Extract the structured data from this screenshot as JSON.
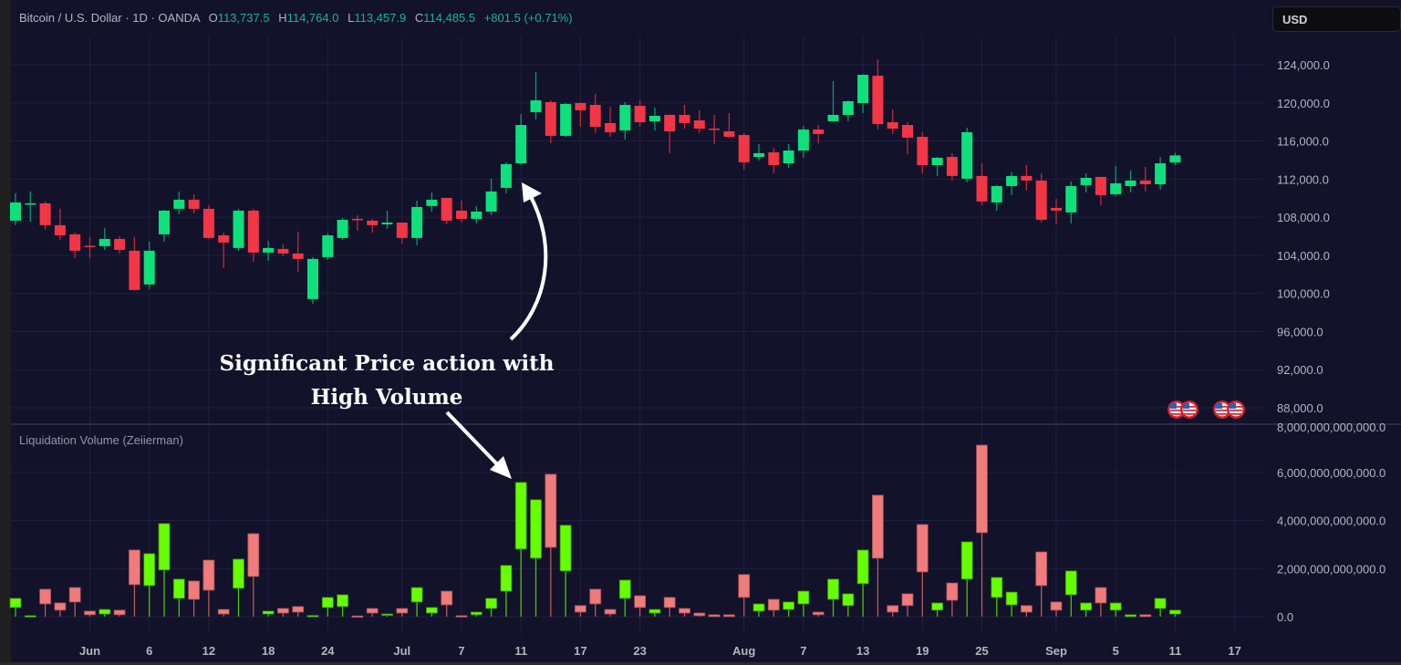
{
  "legend": {
    "symbol": "Bitcoin / U.S. Dollar · 1D · OANDA",
    "open_label": "O",
    "open": "113,737.5",
    "high_label": "H",
    "high": "114,764.0",
    "low_label": "L",
    "low": "113,457.9",
    "close_label": "C",
    "close": "114,485.5",
    "change": "+801.5 (+0.71%)"
  },
  "currency_button": "USD",
  "annotation": {
    "line1": "Significant Price action with",
    "line2": "High Volume"
  },
  "colors": {
    "background": "#12122b",
    "candle_up": "#0ee07b",
    "candle_down": "#f23645",
    "volume_up": "#66ff00",
    "volume_down": "#f07b7b",
    "grid": "#1f2040"
  },
  "icons": [
    "us-flag-event-icon",
    "us-flag-event-icon",
    "us-flag-event-icon",
    "us-flag-event-icon"
  ],
  "chart_data": [
    {
      "type": "candlestick",
      "title": "",
      "ylim": [
        88000,
        124000
      ],
      "y_ticks": [
        "124,000.0",
        "120,000.0",
        "116,000.0",
        "112,000.0",
        "108,000.0",
        "104,000.0",
        "100,000.0",
        "96,000.0",
        "92,000.0",
        "88,000.0"
      ],
      "y_tick_values": [
        124000,
        120000,
        116000,
        112000,
        108000,
        104000,
        100000,
        96000,
        92000,
        88000
      ],
      "x_ticks": [
        {
          "label": "Jun",
          "bar": 5
        },
        {
          "label": "6",
          "bar": 9
        },
        {
          "label": "12",
          "bar": 13
        },
        {
          "label": "18",
          "bar": 17
        },
        {
          "label": "24",
          "bar": 21
        },
        {
          "label": "Jul",
          "bar": 26
        },
        {
          "label": "7",
          "bar": 30
        },
        {
          "label": "11",
          "bar": 34
        },
        {
          "label": "17",
          "bar": 38
        },
        {
          "label": "23",
          "bar": 42
        },
        {
          "label": "Aug",
          "bar": 49
        },
        {
          "label": "7",
          "bar": 53
        },
        {
          "label": "13",
          "bar": 57
        },
        {
          "label": "19",
          "bar": 61
        },
        {
          "label": "25",
          "bar": 65
        },
        {
          "label": "Sep",
          "bar": 70
        },
        {
          "label": "5",
          "bar": 74
        },
        {
          "label": "11",
          "bar": 78
        },
        {
          "label": "17",
          "bar": 82
        }
      ],
      "grid": true,
      "ohlc": [
        [
          107640,
          110510,
          107160,
          109550
        ],
        [
          109400,
          110700,
          107540,
          109460
        ],
        [
          109450,
          109650,
          106680,
          107160
        ],
        [
          107160,
          108880,
          105630,
          106100
        ],
        [
          106200,
          106390,
          103710,
          104480
        ],
        [
          105000,
          105910,
          103710,
          104960
        ],
        [
          104960,
          106870,
          104570,
          105720
        ],
        [
          105720,
          106010,
          104190,
          104570
        ],
        [
          104480,
          105910,
          100300,
          100360
        ],
        [
          100940,
          105440,
          100460,
          104480
        ],
        [
          106200,
          108780,
          105440,
          108690
        ],
        [
          108880,
          110700,
          108310,
          109840
        ],
        [
          109840,
          110410,
          108400,
          108880
        ],
        [
          108880,
          109260,
          105700,
          105820
        ],
        [
          106100,
          106390,
          102660,
          105340
        ],
        [
          104770,
          108880,
          104480,
          108690
        ],
        [
          108690,
          108880,
          103330,
          104290
        ],
        [
          104290,
          105530,
          103430,
          104770
        ],
        [
          104670,
          105150,
          103900,
          104190
        ],
        [
          104190,
          106490,
          102280,
          103620
        ],
        [
          99410,
          103810,
          98930,
          103620
        ],
        [
          103810,
          106300,
          103520,
          106100
        ],
        [
          105820,
          107920,
          105630,
          107730
        ],
        [
          107830,
          108210,
          106580,
          107730
        ],
        [
          107640,
          107830,
          106390,
          107160
        ],
        [
          107250,
          108690,
          106770,
          107440
        ],
        [
          107440,
          107440,
          105240,
          105820
        ],
        [
          105820,
          109740,
          105050,
          109070
        ],
        [
          109170,
          110600,
          108590,
          109840
        ],
        [
          110030,
          110030,
          107250,
          107640
        ],
        [
          108690,
          109740,
          107440,
          107830
        ],
        [
          107830,
          109170,
          107350,
          108590
        ],
        [
          108590,
          112040,
          108210,
          110700
        ],
        [
          111080,
          113760,
          110510,
          113570
        ],
        [
          113660,
          118830,
          113500,
          117680
        ],
        [
          119020,
          123230,
          118260,
          120270
        ],
        [
          120080,
          120270,
          115770,
          116540
        ],
        [
          116540,
          119980,
          116400,
          119890
        ],
        [
          119980,
          120050,
          117490,
          119220
        ],
        [
          119790,
          120940,
          116820,
          117490
        ],
        [
          117880,
          119600,
          116440,
          116920
        ],
        [
          117110,
          120080,
          116150,
          119790
        ],
        [
          119690,
          120270,
          117490,
          117970
        ],
        [
          118070,
          119500,
          117110,
          118640
        ],
        [
          118740,
          118800,
          114720,
          117010
        ],
        [
          118740,
          119790,
          117300,
          117880
        ],
        [
          118160,
          119220,
          116820,
          117300
        ],
        [
          117300,
          118740,
          115670,
          117210
        ],
        [
          117010,
          118930,
          116350,
          116440
        ],
        [
          116630,
          116820,
          112990,
          113760
        ],
        [
          114330,
          115670,
          113950,
          114720
        ],
        [
          114810,
          115290,
          112610,
          113470
        ],
        [
          113660,
          115670,
          113190,
          115000
        ],
        [
          115000,
          117590,
          114240,
          117210
        ],
        [
          117210,
          117680,
          115770,
          116730
        ],
        [
          118070,
          122280,
          118000,
          118740
        ],
        [
          118740,
          120270,
          118070,
          120170
        ],
        [
          119980,
          123000,
          118930,
          122950
        ],
        [
          122850,
          124570,
          117210,
          117780
        ],
        [
          117970,
          119310,
          116730,
          117300
        ],
        [
          117680,
          117970,
          114620,
          116350
        ],
        [
          116440,
          116920,
          112610,
          113470
        ],
        [
          113470,
          114330,
          112330,
          114240
        ],
        [
          114330,
          114720,
          111850,
          112330
        ],
        [
          112040,
          117400,
          111660,
          116920
        ],
        [
          112330,
          113660,
          109260,
          109650
        ],
        [
          109550,
          111370,
          108690,
          111270
        ],
        [
          111270,
          112710,
          110320,
          112330
        ],
        [
          112330,
          113470,
          110790,
          111850
        ],
        [
          111850,
          112610,
          107440,
          107730
        ],
        [
          108980,
          109930,
          107250,
          108690
        ],
        [
          108500,
          111750,
          107350,
          111270
        ],
        [
          111370,
          112610,
          110600,
          112130
        ],
        [
          112230,
          112230,
          109260,
          110320
        ],
        [
          110410,
          113380,
          110220,
          111560
        ],
        [
          111270,
          112900,
          110600,
          111850
        ],
        [
          111850,
          113280,
          110700,
          111460
        ],
        [
          111460,
          114330,
          110890,
          113660
        ],
        [
          113737.5,
          114764.0,
          113457.9,
          114485.5
        ]
      ]
    },
    {
      "type": "candlestick-volume",
      "title": "Liquidation Volume (Zeiierman)",
      "ylim": [
        0,
        8000000000000.0
      ],
      "y_ticks": [
        "8,000,000,000,000.0",
        "6,000,000,000,000.0",
        "4,000,000,000,000.0",
        "2,000,000,000,000.0",
        "0.0"
      ],
      "y_tick_values": [
        8000000000000.0,
        6000000000000.0,
        4000000000000.0,
        2000000000000.0,
        0
      ],
      "bars": [
        {
          "dir": "up",
          "low": 380000000000.0,
          "high": 760000000000.0
        },
        {
          "dir": "up",
          "low": 0,
          "high": 40000000000.0
        },
        {
          "dir": "down",
          "low": 530000000000.0,
          "high": 1140000000000.0
        },
        {
          "dir": "down",
          "low": 270000000000.0,
          "high": 570000000000.0
        },
        {
          "dir": "down",
          "low": 610000000000.0,
          "high": 1210000000000.0
        },
        {
          "dir": "down",
          "low": 80000000000.0,
          "high": 230000000000.0
        },
        {
          "dir": "up",
          "low": 110000000000.0,
          "high": 300000000000.0
        },
        {
          "dir": "down",
          "low": 80000000000.0,
          "high": 270000000000.0
        },
        {
          "dir": "down",
          "low": 1330000000000.0,
          "high": 2770000000000.0
        },
        {
          "dir": "up",
          "low": 1290000000000.0,
          "high": 2620000000000.0
        },
        {
          "dir": "up",
          "low": 1940000000000.0,
          "high": 3870000000000.0
        },
        {
          "dir": "up",
          "low": 760000000000.0,
          "high": 1560000000000.0
        },
        {
          "dir": "down",
          "low": 720000000000.0,
          "high": 1480000000000.0
        },
        {
          "dir": "down",
          "low": 1100000000000.0,
          "high": 2350000000000.0
        },
        {
          "dir": "down",
          "low": 110000000000.0,
          "high": 300000000000.0
        },
        {
          "dir": "up",
          "low": 1180000000000.0,
          "high": 2390000000000.0
        },
        {
          "dir": "down",
          "low": 1670000000000.0,
          "high": 3450000000000.0
        },
        {
          "dir": "up",
          "low": 110000000000.0,
          "high": 230000000000.0
        },
        {
          "dir": "down",
          "low": 150000000000.0,
          "high": 340000000000.0
        },
        {
          "dir": "down",
          "low": 190000000000.0,
          "high": 420000000000.0
        },
        {
          "dir": "up",
          "low": 0,
          "high": 50000000000.0
        },
        {
          "dir": "up",
          "low": 380000000000.0,
          "high": 800000000000.0
        },
        {
          "dir": "up",
          "low": 420000000000.0,
          "high": 910000000000.0
        },
        {
          "dir": "down",
          "low": 0,
          "high": 30000000000.0
        },
        {
          "dir": "down",
          "low": 150000000000.0,
          "high": 340000000000.0
        },
        {
          "dir": "up",
          "low": 80000000000.0,
          "high": 110000000000.0
        },
        {
          "dir": "down",
          "low": 150000000000.0,
          "high": 340000000000.0
        },
        {
          "dir": "up",
          "low": 610000000000.0,
          "high": 1210000000000.0
        },
        {
          "dir": "up",
          "low": 150000000000.0,
          "high": 380000000000.0
        },
        {
          "dir": "down",
          "low": 490000000000.0,
          "high": 1060000000000.0
        },
        {
          "dir": "down",
          "low": 0,
          "high": 40000000000.0
        },
        {
          "dir": "up",
          "low": 80000000000.0,
          "high": 190000000000.0
        },
        {
          "dir": "up",
          "low": 340000000000.0,
          "high": 760000000000.0
        },
        {
          "dir": "up",
          "low": 1060000000000.0,
          "high": 2130000000000.0
        },
        {
          "dir": "up",
          "low": 2810000000000.0,
          "high": 5580000000000.0
        },
        {
          "dir": "up",
          "low": 2430000000000.0,
          "high": 4860000000000.0
        },
        {
          "dir": "down",
          "low": 2880000000000.0,
          "high": 5920000000000.0
        },
        {
          "dir": "up",
          "low": 1900000000000.0,
          "high": 3800000000000.0
        },
        {
          "dir": "down",
          "low": 190000000000.0,
          "high": 460000000000.0
        },
        {
          "dir": "down",
          "low": 530000000000.0,
          "high": 1140000000000.0
        },
        {
          "dir": "down",
          "low": 110000000000.0,
          "high": 300000000000.0
        },
        {
          "dir": "up",
          "low": 760000000000.0,
          "high": 1520000000000.0
        },
        {
          "dir": "down",
          "low": 380000000000.0,
          "high": 870000000000.0
        },
        {
          "dir": "up",
          "low": 150000000000.0,
          "high": 300000000000.0
        },
        {
          "dir": "down",
          "low": 380000000000.0,
          "high": 800000000000.0
        },
        {
          "dir": "down",
          "low": 150000000000.0,
          "high": 340000000000.0
        },
        {
          "dir": "down",
          "low": 40000000000.0,
          "high": 150000000000.0
        },
        {
          "dir": "down",
          "low": 0,
          "high": 80000000000.0
        },
        {
          "dir": "down",
          "low": 0,
          "high": 80000000000.0
        },
        {
          "dir": "down",
          "low": 800000000000.0,
          "high": 1750000000000.0
        },
        {
          "dir": "up",
          "low": 230000000000.0,
          "high": 530000000000.0
        },
        {
          "dir": "down",
          "low": 270000000000.0,
          "high": 720000000000.0
        },
        {
          "dir": "up",
          "low": 300000000000.0,
          "high": 610000000000.0
        },
        {
          "dir": "up",
          "low": 530000000000.0,
          "high": 1060000000000.0
        },
        {
          "dir": "down",
          "low": 80000000000.0,
          "high": 190000000000.0
        },
        {
          "dir": "up",
          "low": 720000000000.0,
          "high": 1560000000000.0
        },
        {
          "dir": "up",
          "low": 460000000000.0,
          "high": 950000000000.0
        },
        {
          "dir": "up",
          "low": 1370000000000.0,
          "high": 2770000000000.0
        },
        {
          "dir": "down",
          "low": 2430000000000.0,
          "high": 5050000000000.0
        },
        {
          "dir": "down",
          "low": 190000000000.0,
          "high": 460000000000.0
        },
        {
          "dir": "down",
          "low": 460000000000.0,
          "high": 950000000000.0
        },
        {
          "dir": "down",
          "low": 1860000000000.0,
          "high": 3830000000000.0
        },
        {
          "dir": "up",
          "low": 270000000000.0,
          "high": 570000000000.0
        },
        {
          "dir": "down",
          "low": 680000000000.0,
          "high": 1400000000000.0
        },
        {
          "dir": "up",
          "low": 1560000000000.0,
          "high": 3110000000000.0
        },
        {
          "dir": "down",
          "low": 3490000000000.0,
          "high": 7130000000000.0
        },
        {
          "dir": "up",
          "low": 800000000000.0,
          "high": 1630000000000.0
        },
        {
          "dir": "up",
          "low": 490000000000.0,
          "high": 1020000000000.0
        },
        {
          "dir": "down",
          "low": 190000000000.0,
          "high": 460000000000.0
        },
        {
          "dir": "down",
          "low": 1290000000000.0,
          "high": 2690000000000.0
        },
        {
          "dir": "down",
          "low": 270000000000.0,
          "high": 610000000000.0
        },
        {
          "dir": "up",
          "low": 910000000000.0,
          "high": 1900000000000.0
        },
        {
          "dir": "up",
          "low": 270000000000.0,
          "high": 570000000000.0
        },
        {
          "dir": "down",
          "low": 570000000000.0,
          "high": 1210000000000.0
        },
        {
          "dir": "up",
          "low": 270000000000.0,
          "high": 570000000000.0
        },
        {
          "dir": "up",
          "low": 0,
          "high": 80000000000.0
        },
        {
          "dir": "down",
          "low": 0,
          "high": 80000000000.0
        },
        {
          "dir": "up",
          "low": 340000000000.0,
          "high": 760000000000.0
        },
        {
          "dir": "up",
          "low": 110000000000.0,
          "high": 270000000000.0
        }
      ]
    }
  ]
}
